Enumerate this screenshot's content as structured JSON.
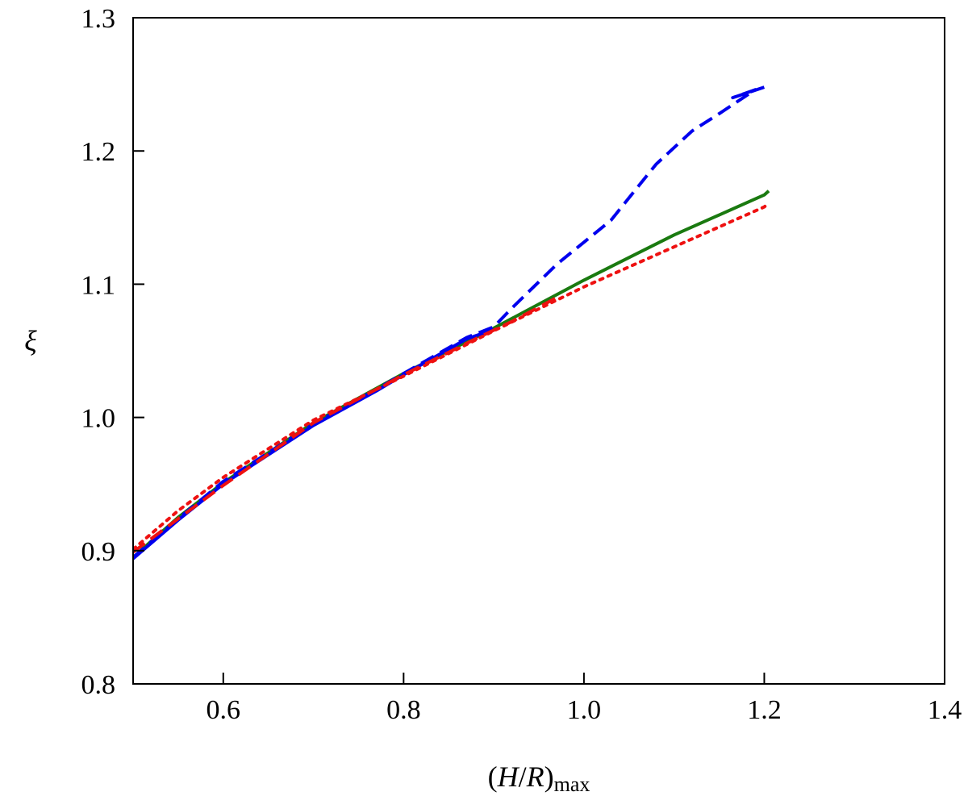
{
  "chart_data": {
    "type": "line",
    "xlabel": {
      "open": "(",
      "var1": "H",
      "sep": "/",
      "var2": "R",
      "close": ")",
      "sub": "max"
    },
    "ylabel": "ξ",
    "xlim": [
      0.5,
      1.4
    ],
    "ylim": [
      0.8,
      1.3
    ],
    "xticks": [
      0.6,
      0.8,
      1.0,
      1.2,
      1.4
    ],
    "xtick_labels": [
      "0.6",
      "0.8",
      "1.0",
      "1.2",
      "1.4"
    ],
    "yticks": [
      0.8,
      0.9,
      1.0,
      1.1,
      1.2,
      1.3
    ],
    "ytick_labels": [
      "0.8",
      "0.9",
      "1.0",
      "1.1",
      "1.2",
      "1.3"
    ],
    "grid": false,
    "series": [
      {
        "color": "#1a7a10",
        "style": "solid",
        "x": [
          0.5,
          0.55,
          0.6,
          0.7,
          0.8,
          0.9,
          1.0,
          1.1,
          1.2,
          1.205
        ],
        "y": [
          0.895,
          0.925,
          0.951,
          0.996,
          1.033,
          1.067,
          1.103,
          1.137,
          1.167,
          1.17
        ]
      },
      {
        "color": "#0000ee",
        "style": "dashed",
        "x": [
          0.5,
          0.55,
          0.6,
          0.7,
          0.77,
          0.8,
          0.87,
          0.9,
          0.92,
          0.97,
          1.03,
          1.08,
          1.12,
          1.15,
          1.19,
          1.165,
          1.205
        ],
        "y": [
          0.895,
          0.924,
          0.952,
          0.995,
          1.021,
          1.033,
          1.06,
          1.068,
          1.082,
          1.115,
          1.148,
          1.19,
          1.215,
          1.228,
          1.246,
          1.24,
          1.249
        ]
      },
      {
        "color": "#0000ee",
        "style": "solid",
        "x": [
          0.5,
          0.55,
          0.6,
          0.7,
          0.77,
          0.8,
          0.87,
          0.9
        ],
        "y": [
          0.894,
          0.923,
          0.95,
          0.994,
          1.02,
          1.032,
          1.059,
          1.066
        ]
      },
      {
        "color": "#ee1111",
        "style": "dotted",
        "x": [
          0.5,
          0.55,
          0.6,
          0.7,
          0.8,
          0.9,
          1.0,
          1.1,
          1.2,
          1.205
        ],
        "y": [
          0.901,
          0.93,
          0.955,
          0.998,
          1.031,
          1.065,
          1.098,
          1.128,
          1.158,
          1.161
        ]
      },
      {
        "color": "#ee1111",
        "style": "dashed",
        "x": [
          0.5,
          0.6,
          0.7,
          0.8,
          0.88,
          0.92,
          0.97
        ],
        "y": [
          0.899,
          0.949,
          0.996,
          1.032,
          1.059,
          1.072,
          1.09
        ]
      }
    ]
  }
}
